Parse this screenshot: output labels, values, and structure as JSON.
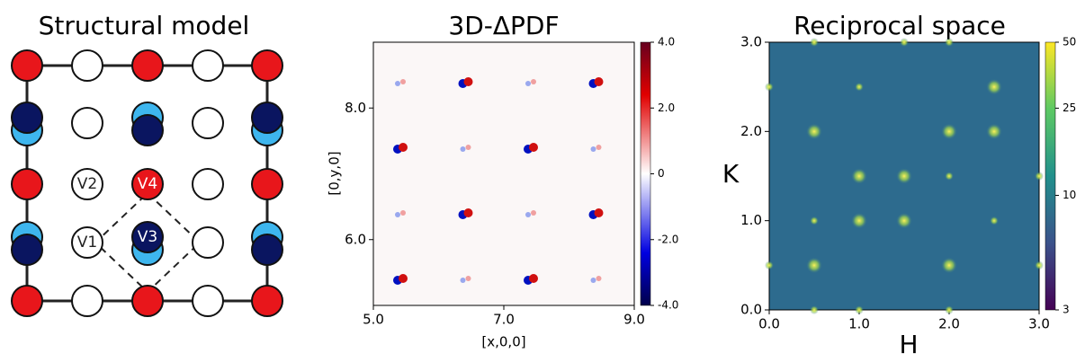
{
  "panels": [
    {
      "title": "Structural model",
      "labels": [
        "V1",
        "V2",
        "V3",
        "V4"
      ]
    },
    {
      "title": "3D-ΔPDF",
      "xlabel": "[x,0,0]",
      "ylabel": "[0,y,0]",
      "xlim": [
        5,
        9
      ],
      "xticks": [
        {
          "value": 5,
          "label": "5.0"
        },
        {
          "value": 7,
          "label": "7.0"
        },
        {
          "value": 9,
          "label": "9.0"
        }
      ],
      "ylim": [
        5,
        9
      ],
      "yticks": [
        {
          "value": 6,
          "label": "6.0"
        },
        {
          "value": 8,
          "label": "8.0"
        }
      ],
      "clim": [
        -4,
        4
      ],
      "cticks": [
        {
          "value": 4,
          "label": "4.0"
        },
        {
          "value": 2,
          "label": "2.0"
        },
        0,
        {
          "value": -2,
          "label": "-2.0"
        },
        {
          "value": -4,
          "label": "-4.0"
        }
      ]
    },
    {
      "title": "Reciprocal space",
      "xlabel": "H",
      "ylabel": "K",
      "xlim": [
        0,
        3
      ],
      "xticks": [
        {
          "value": 0,
          "label": "0.0"
        },
        {
          "value": 1,
          "label": "1.0"
        },
        {
          "value": 2,
          "label": "2.0"
        },
        {
          "value": 3,
          "label": "3.0"
        }
      ],
      "ylim": [
        0,
        3
      ],
      "yticks": [
        {
          "value": 0,
          "label": "0.0"
        },
        {
          "value": 1,
          "label": "1.0"
        },
        {
          "value": 2,
          "label": "2.0"
        },
        {
          "value": 3,
          "label": "3.0"
        }
      ],
      "clim": [
        3,
        50
      ],
      "clog": true,
      "cticks": [
        3,
        10,
        25,
        50
      ]
    }
  ]
}
